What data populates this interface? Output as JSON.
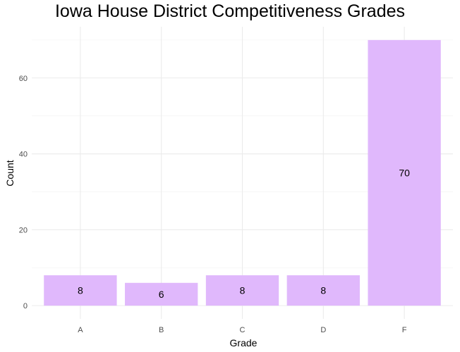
{
  "chart_data": {
    "type": "bar",
    "title": "Iowa House District Competitiveness Grades",
    "xlabel": "Grade",
    "ylabel": "Count",
    "categories": [
      "A",
      "B",
      "C",
      "D",
      "F"
    ],
    "values": [
      8,
      6,
      8,
      8,
      70
    ],
    "data_labels": [
      "8",
      "6",
      "8",
      "8",
      "70"
    ],
    "y_ticks": [
      0,
      20,
      40,
      60
    ],
    "ylim": [
      -3.5,
      73.5
    ],
    "grid": true,
    "legend": "none",
    "bar_color": "#e0b8fc",
    "label_color": "#000000"
  }
}
